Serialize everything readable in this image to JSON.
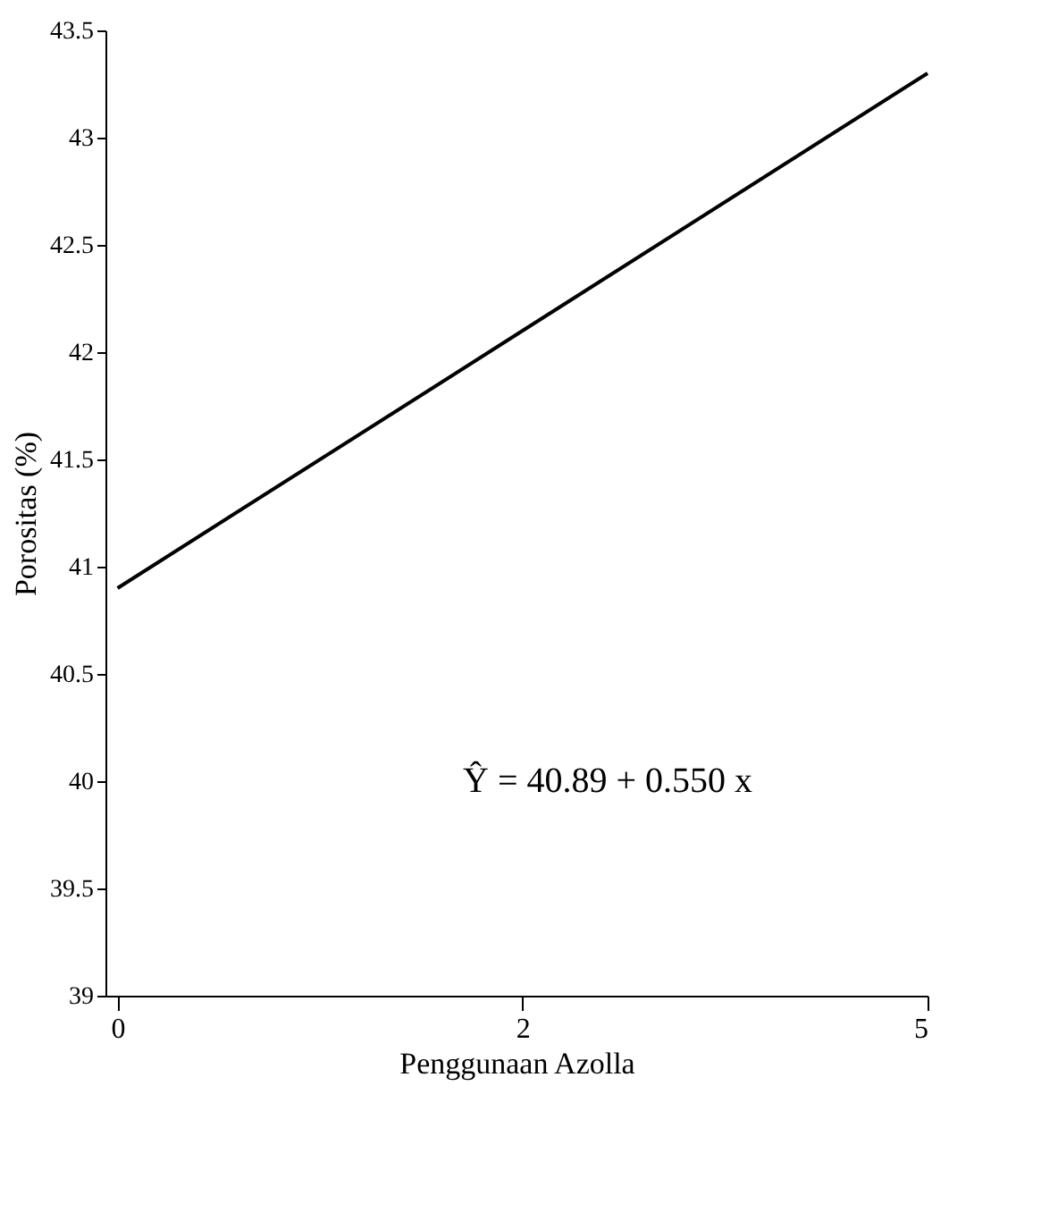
{
  "chart_data": {
    "type": "line",
    "xlabel": "Penggunaan Azolla",
    "ylabel": "Porositas (%)",
    "categories": [
      "0",
      "2",
      "5"
    ],
    "series": [
      {
        "color": "#000000",
        "values": [
          40.9,
          42.1,
          43.3
        ]
      }
    ],
    "ylim": [
      39,
      43.5
    ],
    "yticks": [
      39,
      39.5,
      40,
      40.5,
      41,
      41.5,
      42,
      42.5,
      43,
      43.5
    ],
    "grid": false,
    "marker": "none",
    "line_style": "solid",
    "annotations": [
      "Ŷ = 40.89 + 0.550 x"
    ]
  }
}
